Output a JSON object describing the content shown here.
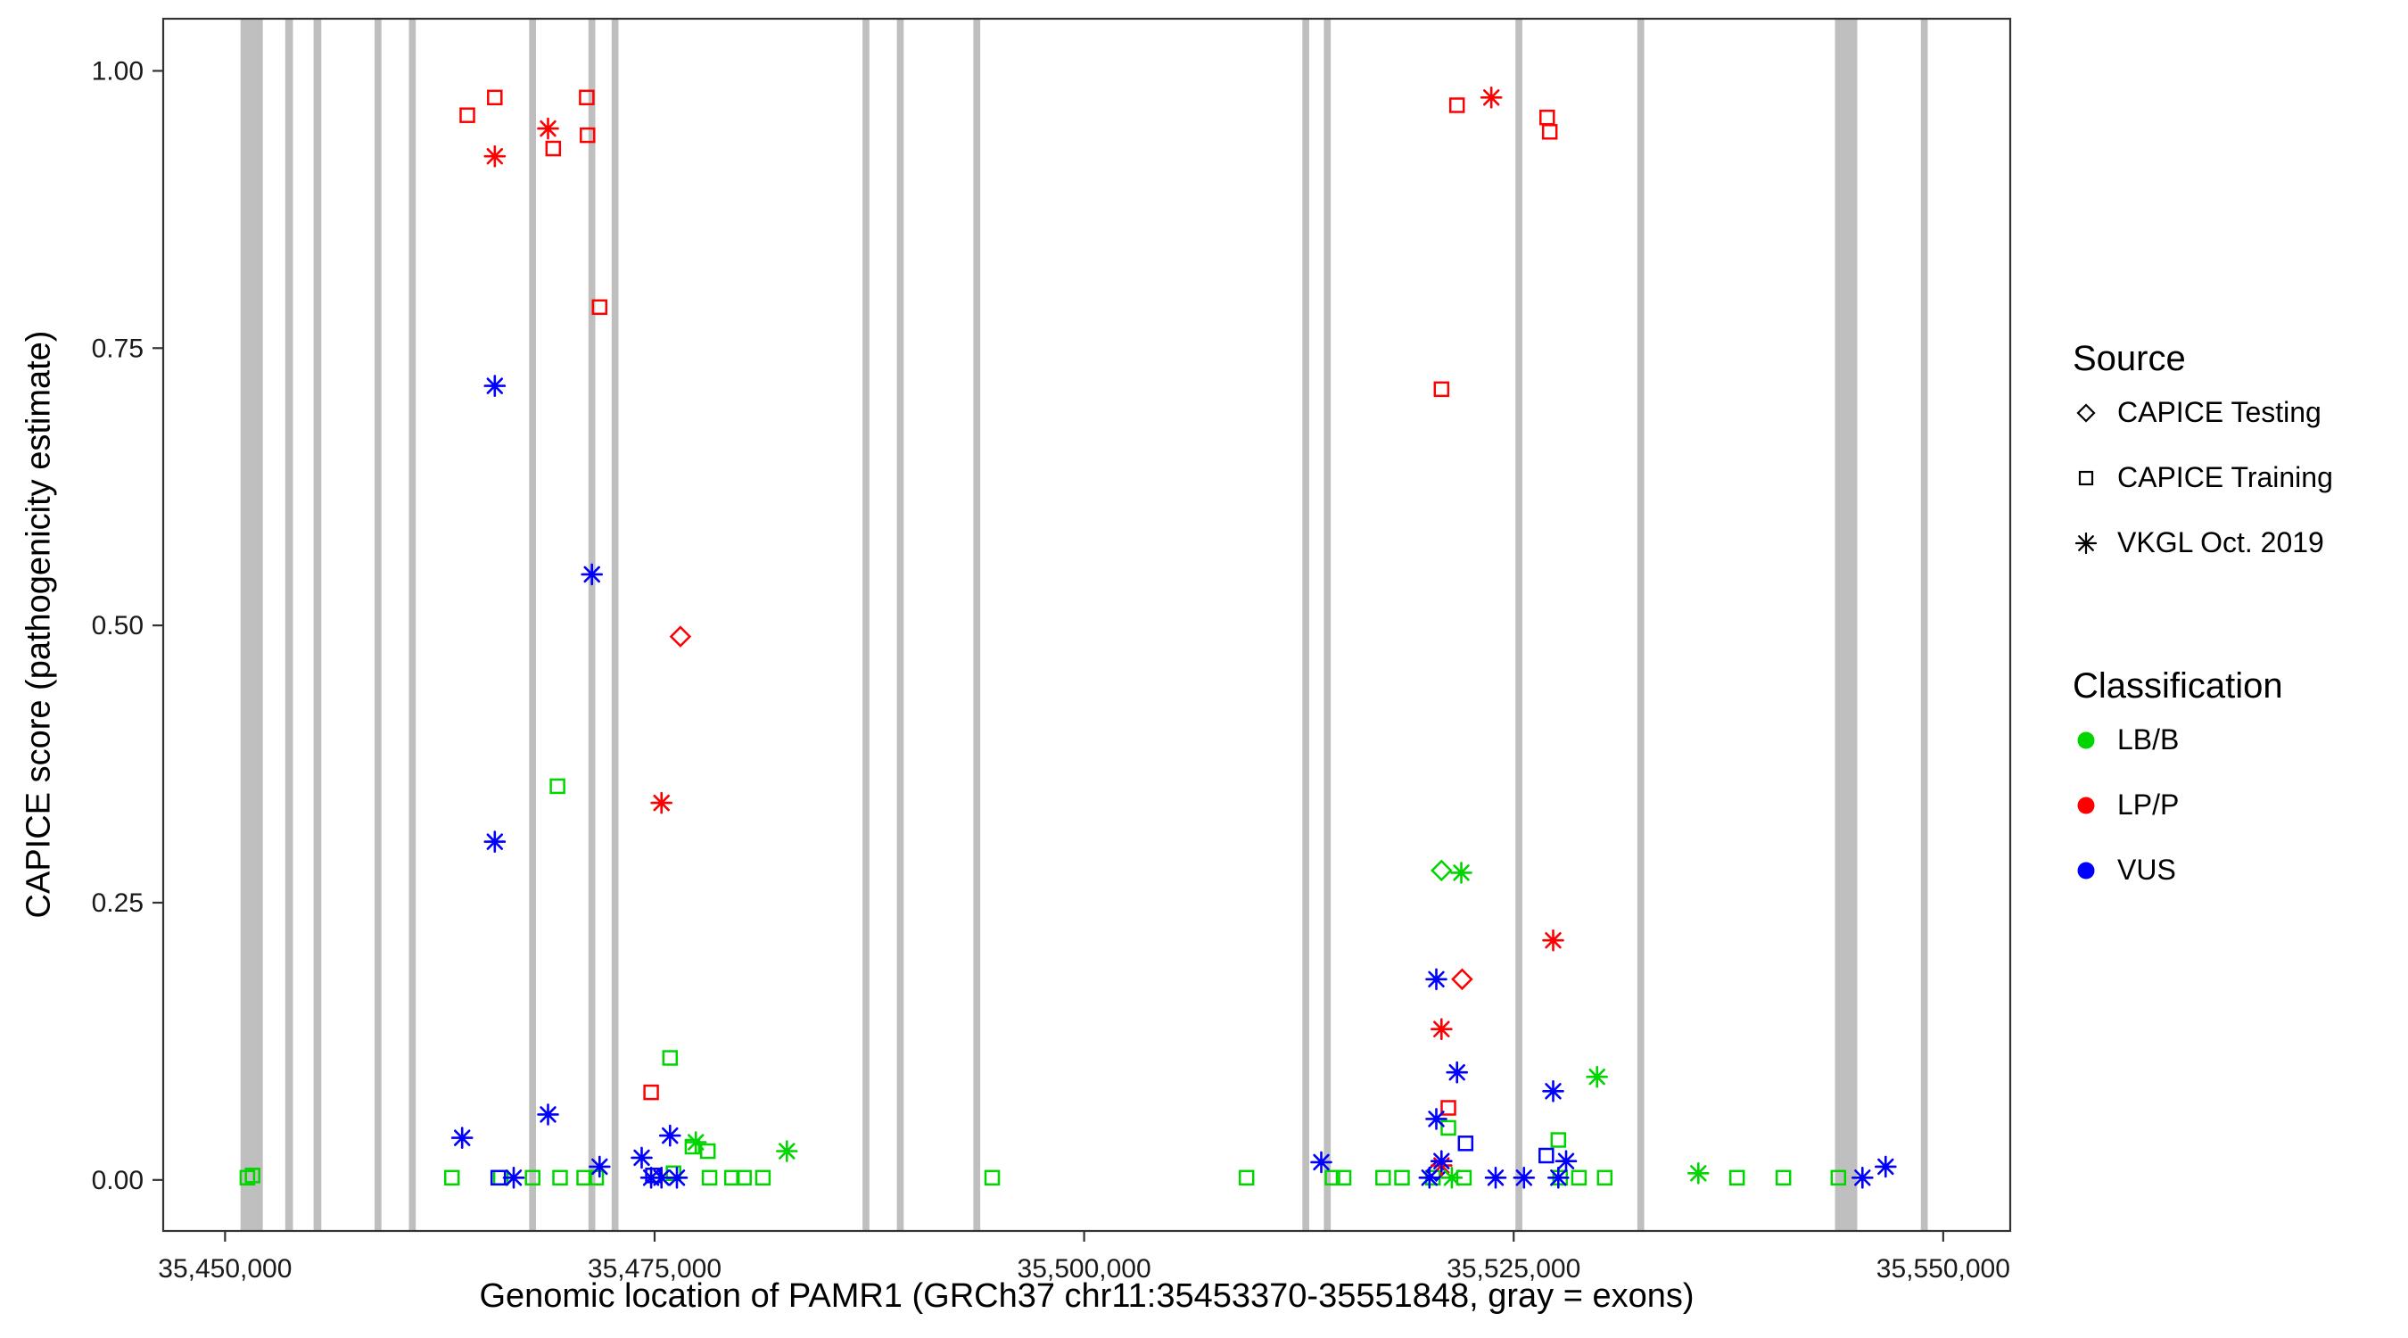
{
  "legend": {
    "source": {
      "title": "Source",
      "items": [
        {
          "label": "CAPICE Testing",
          "marker": "diamond"
        },
        {
          "label": "CAPICE Training",
          "marker": "square"
        },
        {
          "label": "VKGL Oct. 2019",
          "marker": "asterisk"
        }
      ]
    },
    "classification": {
      "title": "Classification",
      "items": [
        {
          "label": "LB/B",
          "color": "#00D500"
        },
        {
          "label": "LP/P",
          "color": "#FF0000"
        },
        {
          "label": "VUS",
          "color": "#0000FF"
        }
      ]
    }
  },
  "chart_data": {
    "type": "scatter",
    "title": "",
    "xlabel": "Genomic location of PAMR1 (GRCh37 chr11:35453370-35551848, gray = exons)",
    "ylabel": "CAPICE score (pathogenicity estimate)",
    "xlim": [
      35446400,
      35553900
    ],
    "ylim": [
      -0.046,
      1.047
    ],
    "x_ticks": {
      "values": [
        35450000,
        35475000,
        35500000,
        35525000,
        35550000
      ],
      "labels": [
        "35,450,000",
        "35,475,000",
        "35,500,000",
        "35,525,000",
        "35,550,000"
      ]
    },
    "y_ticks": {
      "values": [
        0,
        0.25,
        0.5,
        0.75,
        1
      ],
      "labels": [
        "0.00",
        "0.25",
        "0.50",
        "0.75",
        "1.00"
      ]
    },
    "grid": "off",
    "legend_position": "right",
    "exon_color": "#BFBFBF",
    "border_color": "#333333",
    "exons": [
      [
        35450900,
        35452200
      ],
      [
        35453500,
        35453950
      ],
      [
        35455150,
        35455600
      ],
      [
        35458700,
        35459100
      ],
      [
        35460700,
        35461100
      ],
      [
        35467700,
        35468100
      ],
      [
        35471150,
        35471550
      ],
      [
        35472500,
        35472900
      ],
      [
        35487100,
        35487500
      ],
      [
        35489100,
        35489500
      ],
      [
        35493550,
        35493950
      ],
      [
        35512700,
        35513100
      ],
      [
        35513950,
        35514350
      ],
      [
        35525100,
        35525500
      ],
      [
        35532200,
        35532600
      ],
      [
        35543700,
        35545000
      ],
      [
        35548700,
        35549100
      ]
    ],
    "series": [
      {
        "name": "CAPICE Training / LP/P",
        "source": "CAPICE Training",
        "classification": "LP/P",
        "marker": "square",
        "color": "#FF0000",
        "points": [
          [
            35464100,
            0.96
          ],
          [
            35465700,
            0.976
          ],
          [
            35469100,
            0.93
          ],
          [
            35471050,
            0.976
          ],
          [
            35471100,
            0.942
          ],
          [
            35471800,
            0.787
          ],
          [
            35474800,
            0.079
          ],
          [
            35520800,
            0.713
          ],
          [
            35521700,
            0.969
          ],
          [
            35521200,
            0.065
          ],
          [
            35526950,
            0.958
          ],
          [
            35527100,
            0.945
          ]
        ]
      },
      {
        "name": "CAPICE Training / LB/B",
        "source": "CAPICE Training",
        "classification": "LB/B",
        "marker": "square",
        "color": "#00D500",
        "points": [
          [
            35451300,
            0.002
          ],
          [
            35451600,
            0.004
          ],
          [
            35463200,
            0.002
          ],
          [
            35466050,
            0.002
          ],
          [
            35467900,
            0.002
          ],
          [
            35469350,
            0.355
          ],
          [
            35469500,
            0.002
          ],
          [
            35470900,
            0.002
          ],
          [
            35471600,
            0.002
          ],
          [
            35475900,
            0.11
          ],
          [
            35476100,
            0.006
          ],
          [
            35477200,
            0.03
          ],
          [
            35478100,
            0.026
          ],
          [
            35478200,
            0.002
          ],
          [
            35479500,
            0.002
          ],
          [
            35480200,
            0.002
          ],
          [
            35481300,
            0.002
          ],
          [
            35494650,
            0.002
          ],
          [
            35509450,
            0.002
          ],
          [
            35514450,
            0.002
          ],
          [
            35515100,
            0.002
          ],
          [
            35517400,
            0.002
          ],
          [
            35518500,
            0.002
          ],
          [
            35520300,
            0.002
          ],
          [
            35521200,
            0.047
          ],
          [
            35522100,
            0.002
          ],
          [
            35527600,
            0.036
          ],
          [
            35527700,
            0.002
          ],
          [
            35528800,
            0.002
          ],
          [
            35530300,
            0.002
          ],
          [
            35538000,
            0.002
          ],
          [
            35540700,
            0.002
          ],
          [
            35543900,
            0.002
          ]
        ]
      },
      {
        "name": "CAPICE Training / VUS",
        "source": "CAPICE Training",
        "classification": "VUS",
        "marker": "square",
        "color": "#0000FF",
        "points": [
          [
            35465900,
            0.002
          ],
          [
            35474900,
            0.004
          ],
          [
            35522200,
            0.033
          ],
          [
            35526900,
            0.022
          ]
        ]
      },
      {
        "name": "CAPICE Testing / LP/P",
        "source": "CAPICE Testing",
        "classification": "LP/P",
        "marker": "diamond",
        "color": "#FF0000",
        "points": [
          [
            35476500,
            0.49
          ],
          [
            35522000,
            0.181
          ]
        ]
      },
      {
        "name": "CAPICE Testing / LB/B",
        "source": "CAPICE Testing",
        "classification": "LB/B",
        "marker": "diamond",
        "color": "#00D500",
        "points": [
          [
            35520800,
            0.279
          ]
        ]
      },
      {
        "name": "CAPICE Testing / VUS",
        "source": "CAPICE Testing",
        "classification": "VUS",
        "marker": "diamond",
        "color": "#0000FF",
        "points": [
          [
            35520500,
            0.008
          ]
        ]
      },
      {
        "name": "VKGL Oct. 2019 / LP/P",
        "source": "VKGL Oct. 2019",
        "classification": "LP/P",
        "marker": "asterisk",
        "color": "#FF0000",
        "points": [
          [
            35465700,
            0.923
          ],
          [
            35468800,
            0.948
          ],
          [
            35475400,
            0.34
          ],
          [
            35523700,
            0.976
          ],
          [
            35520800,
            0.136
          ],
          [
            35527300,
            0.216
          ],
          [
            35520800,
            0.013
          ]
        ]
      },
      {
        "name": "VKGL Oct. 2019 / LB/B",
        "source": "VKGL Oct. 2019",
        "classification": "LB/B",
        "marker": "asterisk",
        "color": "#00D500",
        "points": [
          [
            35477400,
            0.034
          ],
          [
            35482700,
            0.026
          ],
          [
            35521950,
            0.277
          ],
          [
            35529850,
            0.093
          ],
          [
            35535750,
            0.006
          ],
          [
            35521400,
            0.002
          ]
        ]
      },
      {
        "name": "VKGL Oct. 2019 / VUS",
        "source": "VKGL Oct. 2019",
        "classification": "VUS",
        "marker": "asterisk",
        "color": "#0000FF",
        "points": [
          [
            35465700,
            0.716
          ],
          [
            35471350,
            0.546
          ],
          [
            35465700,
            0.305
          ],
          [
            35463800,
            0.038
          ],
          [
            35468800,
            0.059
          ],
          [
            35471800,
            0.012
          ],
          [
            35474250,
            0.02
          ],
          [
            35474800,
            0.002
          ],
          [
            35475400,
            0.002
          ],
          [
            35475900,
            0.04
          ],
          [
            35476300,
            0.002
          ],
          [
            35466800,
            0.002
          ],
          [
            35513800,
            0.016
          ],
          [
            35520100,
            0.002
          ],
          [
            35520500,
            0.181
          ],
          [
            35520500,
            0.055
          ],
          [
            35520800,
            0.017
          ],
          [
            35521700,
            0.097
          ],
          [
            35523950,
            0.002
          ],
          [
            35525600,
            0.002
          ],
          [
            35527300,
            0.08
          ],
          [
            35527600,
            0.002
          ],
          [
            35528050,
            0.017
          ],
          [
            35545300,
            0.002
          ],
          [
            35546650,
            0.012
          ]
        ]
      }
    ]
  }
}
